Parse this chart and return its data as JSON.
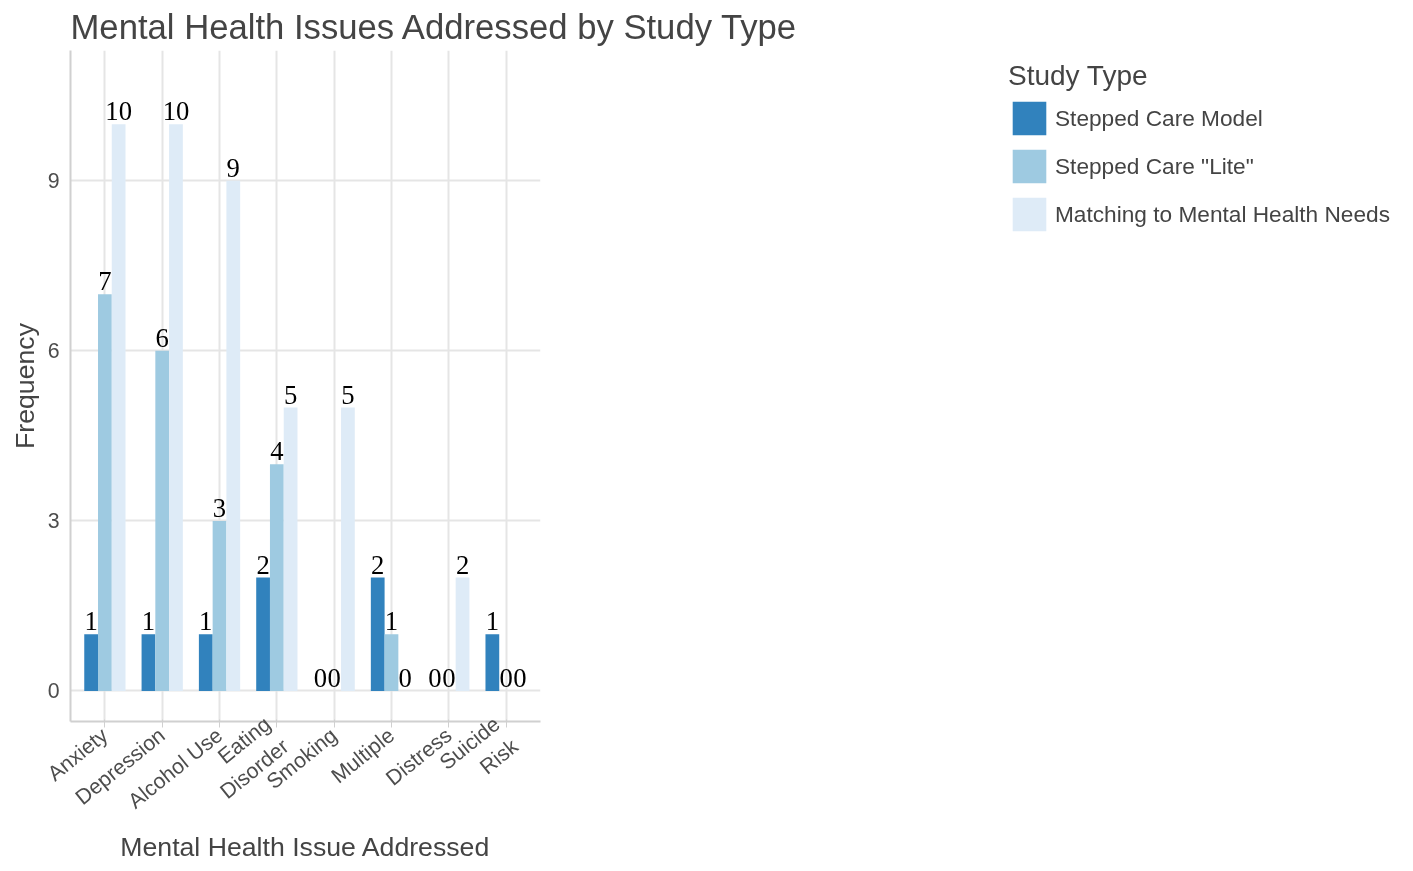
{
  "chart_data": {
    "type": "bar",
    "title": "Mental Health Issues Addressed by Study Type",
    "xlabel": "Mental Health Issue Addressed",
    "ylabel": "Frequency",
    "legend_title": "Study Type",
    "categories": [
      "Anxiety",
      "Depression",
      "Alcohol Use",
      "Eating\nDisorder",
      "Smoking",
      "Multiple",
      "Distress",
      "Suicide\nRisk"
    ],
    "series": [
      {
        "name": "Stepped Care Model",
        "color": "#3182bd",
        "values": [
          1,
          1,
          1,
          2,
          0,
          2,
          0,
          1
        ]
      },
      {
        "name": "Stepped Care \"Lite\"",
        "color": "#9ecae1",
        "values": [
          7,
          6,
          3,
          4,
          0,
          1,
          0,
          0
        ]
      },
      {
        "name": "Matching to Mental Health Needs",
        "color": "#deebf7",
        "values": [
          10,
          10,
          9,
          5,
          5,
          0,
          2,
          0
        ]
      }
    ],
    "ylim": [
      -0.54,
      11.3
    ],
    "yticks": [
      0,
      3,
      6,
      9
    ],
    "grid": true,
    "legend": "right",
    "data_labels": true
  }
}
